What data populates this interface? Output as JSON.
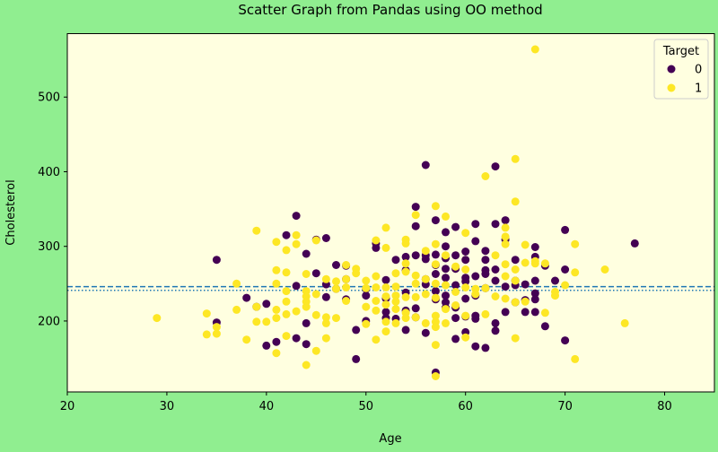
{
  "chart_data": {
    "type": "scatter",
    "title": "Scatter Graph from Pandas using OO method",
    "xlabel": "Age",
    "ylabel": "Cholesterol",
    "xlim": [
      20,
      85
    ],
    "ylim": [
      105,
      585
    ],
    "xticks": [
      20,
      30,
      40,
      50,
      60,
      70,
      80
    ],
    "yticks": [
      200,
      300,
      400,
      500
    ],
    "grid": false,
    "legend": {
      "title": "Target",
      "placement": "top-right"
    },
    "hlines": [
      {
        "y": 246,
        "style": "dashed",
        "color": "#1f77b4"
      },
      {
        "y": 241,
        "style": "dotted",
        "color": "#1f77b4"
      }
    ],
    "series": [
      {
        "name": "0",
        "color": "#440154",
        "points": [
          [
            35,
            282
          ],
          [
            35,
            198
          ],
          [
            38,
            231
          ],
          [
            39,
            219
          ],
          [
            40,
            223
          ],
          [
            40,
            167
          ],
          [
            41,
            172
          ],
          [
            42,
            315
          ],
          [
            43,
            341
          ],
          [
            43,
            247
          ],
          [
            43,
            177
          ],
          [
            44,
            290
          ],
          [
            44,
            197
          ],
          [
            44,
            169
          ],
          [
            45,
            309
          ],
          [
            45,
            264
          ],
          [
            46,
            311
          ],
          [
            46,
            249
          ],
          [
            46,
            232
          ],
          [
            47,
            275
          ],
          [
            47,
            243
          ],
          [
            48,
            274
          ],
          [
            48,
            256
          ],
          [
            48,
            229
          ],
          [
            49,
            149
          ],
          [
            49,
            188
          ],
          [
            50,
            243
          ],
          [
            50,
            234
          ],
          [
            50,
            200
          ],
          [
            51,
            304
          ],
          [
            51,
            298
          ],
          [
            52,
            255
          ],
          [
            52,
            230
          ],
          [
            52,
            212
          ],
          [
            52,
            204
          ],
          [
            53,
            282
          ],
          [
            53,
            203
          ],
          [
            54,
            286
          ],
          [
            54,
            268
          ],
          [
            54,
            238
          ],
          [
            54,
            214
          ],
          [
            54,
            188
          ],
          [
            55,
            353
          ],
          [
            55,
            327
          ],
          [
            55,
            288
          ],
          [
            55,
            217
          ],
          [
            55,
            205
          ],
          [
            56,
            409
          ],
          [
            56,
            288
          ],
          [
            56,
            283
          ],
          [
            56,
            256
          ],
          [
            56,
            249
          ],
          [
            56,
            184
          ],
          [
            57,
            335
          ],
          [
            57,
            289
          ],
          [
            57,
            275
          ],
          [
            57,
            263
          ],
          [
            57,
            240
          ],
          [
            57,
            229
          ],
          [
            57,
            131
          ],
          [
            58,
            319
          ],
          [
            58,
            300
          ],
          [
            58,
            284
          ],
          [
            58,
            270
          ],
          [
            58,
            258
          ],
          [
            58,
            234
          ],
          [
            58,
            225
          ],
          [
            58,
            218
          ],
          [
            59,
            326
          ],
          [
            59,
            288
          ],
          [
            59,
            270
          ],
          [
            59,
            248
          ],
          [
            59,
            218
          ],
          [
            59,
            204
          ],
          [
            59,
            176
          ],
          [
            60,
            293
          ],
          [
            60,
            282
          ],
          [
            60,
            258
          ],
          [
            60,
            253
          ],
          [
            60,
            230
          ],
          [
            60,
            206
          ],
          [
            60,
            185
          ],
          [
            61,
            330
          ],
          [
            61,
            307
          ],
          [
            61,
            260
          ],
          [
            61,
            234
          ],
          [
            61,
            207
          ],
          [
            61,
            203
          ],
          [
            61,
            166
          ],
          [
            62,
            294
          ],
          [
            62,
            282
          ],
          [
            62,
            268
          ],
          [
            62,
            263
          ],
          [
            62,
            244
          ],
          [
            62,
            164
          ],
          [
            63,
            407
          ],
          [
            63,
            330
          ],
          [
            63,
            269
          ],
          [
            63,
            254
          ],
          [
            63,
            197
          ],
          [
            63,
            187
          ],
          [
            64,
            335
          ],
          [
            64,
            309
          ],
          [
            64,
            246
          ],
          [
            64,
            212
          ],
          [
            65,
            282
          ],
          [
            65,
            254
          ],
          [
            65,
            248
          ],
          [
            65,
            225
          ],
          [
            66,
            249
          ],
          [
            66,
            228
          ],
          [
            66,
            212
          ],
          [
            67,
            299
          ],
          [
            67,
            286
          ],
          [
            67,
            254
          ],
          [
            67,
            237
          ],
          [
            67,
            229
          ],
          [
            67,
            212
          ],
          [
            68,
            274
          ],
          [
            68,
            193
          ],
          [
            69,
            254
          ],
          [
            70,
            322
          ],
          [
            70,
            269
          ],
          [
            70,
            174
          ],
          [
            77,
            304
          ]
        ]
      },
      {
        "name": "1",
        "color": "#fde725",
        "points": [
          [
            29,
            204
          ],
          [
            34,
            210
          ],
          [
            34,
            182
          ],
          [
            35,
            192
          ],
          [
            35,
            183
          ],
          [
            37,
            250
          ],
          [
            37,
            215
          ],
          [
            38,
            175
          ],
          [
            39,
            321
          ],
          [
            39,
            199
          ],
          [
            39,
            219
          ],
          [
            40,
            199
          ],
          [
            41,
            306
          ],
          [
            41,
            268
          ],
          [
            41,
            250
          ],
          [
            41,
            215
          ],
          [
            41,
            204
          ],
          [
            41,
            157
          ],
          [
            42,
            295
          ],
          [
            42,
            265
          ],
          [
            42,
            240
          ],
          [
            42,
            226
          ],
          [
            42,
            209
          ],
          [
            42,
            180
          ],
          [
            43,
            315
          ],
          [
            43,
            303
          ],
          [
            43,
            213
          ],
          [
            44,
            263
          ],
          [
            44,
            240
          ],
          [
            44,
            233
          ],
          [
            44,
            226
          ],
          [
            44,
            219
          ],
          [
            44,
            141
          ],
          [
            45,
            308
          ],
          [
            45,
            236
          ],
          [
            45,
            208
          ],
          [
            45,
            160
          ],
          [
            46,
            256
          ],
          [
            46,
            205
          ],
          [
            46,
            197
          ],
          [
            46,
            177
          ],
          [
            47,
            243
          ],
          [
            47,
            253
          ],
          [
            47,
            204
          ],
          [
            48,
            275
          ],
          [
            48,
            256
          ],
          [
            48,
            245
          ],
          [
            48,
            227
          ],
          [
            49,
            270
          ],
          [
            49,
            264
          ],
          [
            50,
            254
          ],
          [
            50,
            244
          ],
          [
            50,
            219
          ],
          [
            50,
            196
          ],
          [
            51,
            308
          ],
          [
            51,
            260
          ],
          [
            51,
            245
          ],
          [
            51,
            227
          ],
          [
            51,
            214
          ],
          [
            51,
            175
          ],
          [
            52,
            325
          ],
          [
            52,
            298
          ],
          [
            52,
            245
          ],
          [
            52,
            233
          ],
          [
            52,
            222
          ],
          [
            52,
            199
          ],
          [
            52,
            186
          ],
          [
            53,
            264
          ],
          [
            53,
            246
          ],
          [
            53,
            234
          ],
          [
            53,
            226
          ],
          [
            53,
            216
          ],
          [
            53,
            197
          ],
          [
            54,
            309
          ],
          [
            54,
            304
          ],
          [
            54,
            277
          ],
          [
            54,
            266
          ],
          [
            54,
            232
          ],
          [
            54,
            211
          ],
          [
            54,
            204
          ],
          [
            55,
            342
          ],
          [
            55,
            261
          ],
          [
            55,
            250
          ],
          [
            55,
            232
          ],
          [
            55,
            205
          ],
          [
            56,
            294
          ],
          [
            56,
            256
          ],
          [
            56,
            236
          ],
          [
            56,
            197
          ],
          [
            57,
            354
          ],
          [
            57,
            303
          ],
          [
            57,
            276
          ],
          [
            57,
            250
          ],
          [
            57,
            231
          ],
          [
            57,
            207
          ],
          [
            57,
            199
          ],
          [
            57,
            192
          ],
          [
            57,
            168
          ],
          [
            57,
            126
          ],
          [
            58,
            340
          ],
          [
            58,
            288
          ],
          [
            58,
            248
          ],
          [
            58,
            216
          ],
          [
            58,
            197
          ],
          [
            59,
            273
          ],
          [
            59,
            239
          ],
          [
            59,
            221
          ],
          [
            60,
            318
          ],
          [
            60,
            269
          ],
          [
            60,
            245
          ],
          [
            60,
            207
          ],
          [
            60,
            178
          ],
          [
            61,
            243
          ],
          [
            61,
            236
          ],
          [
            62,
            394
          ],
          [
            62,
            244
          ],
          [
            62,
            209
          ],
          [
            63,
            288
          ],
          [
            63,
            233
          ],
          [
            64,
            325
          ],
          [
            64,
            313
          ],
          [
            64,
            303
          ],
          [
            64,
            276
          ],
          [
            64,
            260
          ],
          [
            64,
            230
          ],
          [
            65,
            417
          ],
          [
            65,
            360
          ],
          [
            65,
            269
          ],
          [
            65,
            254
          ],
          [
            65,
            225
          ],
          [
            65,
            177
          ],
          [
            66,
            302
          ],
          [
            66,
            278
          ],
          [
            66,
            226
          ],
          [
            67,
            280
          ],
          [
            67,
            277
          ],
          [
            68,
            277
          ],
          [
            68,
            211
          ],
          [
            69,
            239
          ],
          [
            69,
            234
          ],
          [
            70,
            248
          ],
          [
            71,
            303
          ],
          [
            71,
            265
          ],
          [
            71,
            149
          ],
          [
            74,
            269
          ],
          [
            76,
            197
          ],
          [
            67,
            564
          ]
        ]
      }
    ]
  }
}
